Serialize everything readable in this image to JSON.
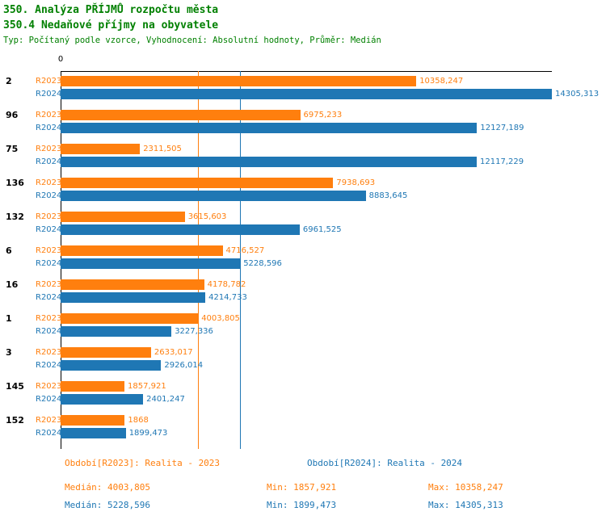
{
  "header": {
    "title1": "350. Analýza PŘÍJMŮ rozpočtu města",
    "title2": "350.4 Nedaňové příjmy na obyvatele",
    "subtitle": "Typ: Počítaný podle vzorce, Vyhodnocení: Absolutní hodnoty, Průměr: Medián"
  },
  "colors": {
    "title_green": "#008000",
    "r2023_orange": "#ff7f0e",
    "r2024_blue": "#1f77b4",
    "axis_black": "#000000",
    "background": "#ffffff"
  },
  "chart_data": {
    "type": "bar",
    "orientation": "horizontal",
    "title": "350.4 Nedaňové příjmy na obyvatele",
    "categories": [
      "2",
      "96",
      "75",
      "136",
      "132",
      "6",
      "16",
      "1",
      "3",
      "145",
      "152"
    ],
    "series": [
      {
        "name": "R2023",
        "color": "#ff7f0e",
        "values": [
          10358.247,
          6975.233,
          2311.505,
          7938.693,
          3615.603,
          4716.527,
          4178.782,
          4003.805,
          2633.017,
          1857.921,
          1868
        ],
        "labels": [
          "10358,247",
          "6975,233",
          "2311,505",
          "7938,693",
          "3615,603",
          "4716,527",
          "4178,782",
          "4003,805",
          "2633,017",
          "1857,921",
          "1868"
        ]
      },
      {
        "name": "R2024",
        "color": "#1f77b4",
        "values": [
          14305.313,
          12127.189,
          12117.229,
          8883.645,
          6961.525,
          5228.596,
          4214.733,
          3227.336,
          2926.014,
          2401.247,
          1899.473
        ],
        "labels": [
          "14305,313",
          "12127,189",
          "12117,229",
          "8883,645",
          "6961,525",
          "5228,596",
          "4214,733",
          "3227,336",
          "2926,014",
          "2401,247",
          "1899,473"
        ]
      }
    ],
    "x_axis": {
      "zero_label": "0",
      "min": 0,
      "max": 14305.313,
      "position": "top"
    },
    "grid": false,
    "legend_position": "bottom",
    "reference_lines": [
      {
        "name": "median-r2023",
        "value": 4003.805,
        "color": "#ff7f0e"
      },
      {
        "name": "median-r2024",
        "value": 5228.596,
        "color": "#1f77b4"
      }
    ]
  },
  "footer": {
    "legend_r2023": "Období[R2023]: Realita - 2023",
    "legend_r2024": "Období[R2024]: Realita - 2024",
    "stats_r2023": {
      "median": "Medián: 4003,805",
      "min": "Min: 1857,921",
      "max": "Max: 10358,247"
    },
    "stats_r2024": {
      "median": "Medián: 5228,596",
      "min": "Min: 1899,473",
      "max": "Max: 14305,313"
    }
  }
}
